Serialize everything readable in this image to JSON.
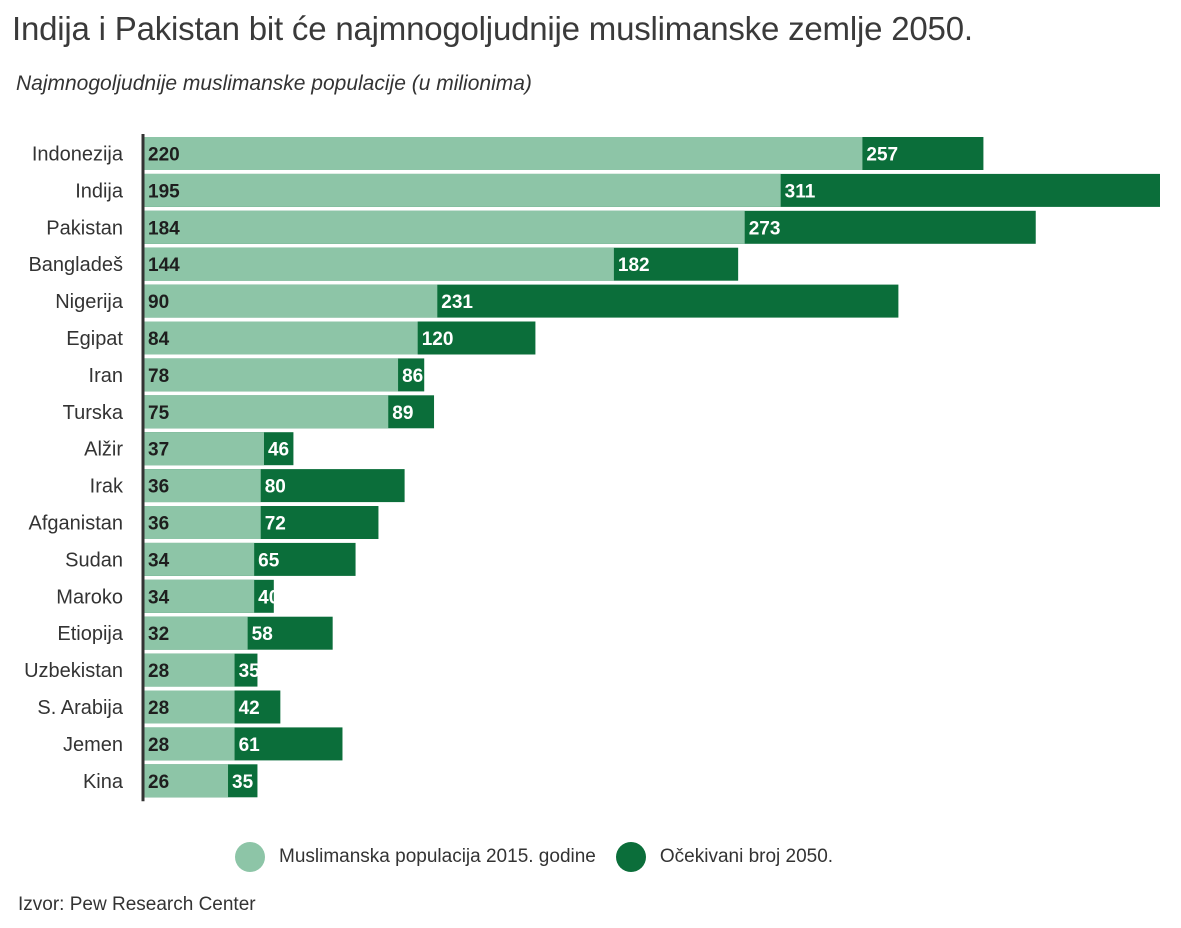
{
  "title": "Indija i Pakistan bit će najmnogoljudnije muslimanske zemlje 2050.",
  "subtitle": "Najmnogoljudnije muslimanske populacije (u milionima)",
  "source": "Izvor: Pew Research Center",
  "colors": {
    "series_2015": "#8dc5a7",
    "series_2050": "#0b6e3a",
    "axis": "#333333"
  },
  "chart_data": {
    "type": "bar",
    "orientation": "horizontal",
    "layout": "overlapping",
    "categories": [
      "Indonezija",
      "Indija",
      "Pakistan",
      "Bangladeš",
      "Nigerija",
      "Egipat",
      "Iran",
      "Turska",
      "Alžir",
      "Irak",
      "Afganistan",
      "Sudan",
      "Maroko",
      "Etiopija",
      "Uzbekistan",
      "S. Arabija",
      "Jemen",
      "Kina"
    ],
    "series": [
      {
        "name": "Muslimanska populacija 2015. godine",
        "values": [
          220,
          195,
          184,
          144,
          90,
          84,
          78,
          75,
          37,
          36,
          36,
          34,
          34,
          32,
          28,
          28,
          28,
          26
        ]
      },
      {
        "name": "Očekivani broj 2050.",
        "values": [
          257,
          311,
          273,
          182,
          231,
          120,
          86,
          89,
          46,
          80,
          72,
          65,
          40,
          58,
          35,
          42,
          61,
          35
        ]
      }
    ],
    "xlim": [
      0,
      311
    ],
    "legend_position": "bottom-center",
    "grid": false
  }
}
